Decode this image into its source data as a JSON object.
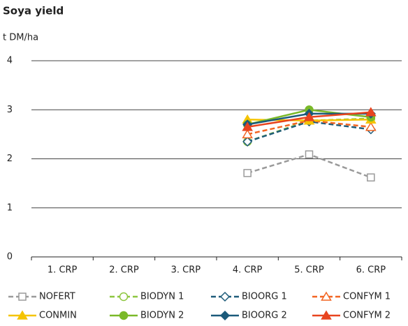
{
  "chart_data": {
    "type": "line",
    "title": "Soya yield",
    "y_label": "t DM/ha",
    "categories": [
      "1. CRP",
      "2. CRP",
      "3. CRP",
      "4. CRP",
      "5. CRP",
      "6. CRP"
    ],
    "ylim": [
      0,
      4
    ],
    "yticks": [
      0,
      1,
      2,
      3,
      4
    ],
    "grid": true,
    "series": [
      {
        "name": "NOFERT",
        "color": "#9a9a9a",
        "dashed": true,
        "marker": "square",
        "filled": false,
        "values": [
          null,
          null,
          null,
          1.71,
          2.09,
          1.62
        ]
      },
      {
        "name": "BIODYN 1",
        "color": "#8dc63f",
        "dashed": true,
        "marker": "circle",
        "filled": false,
        "values": [
          null,
          null,
          null,
          2.35,
          2.78,
          2.82
        ]
      },
      {
        "name": "BIOORG 1",
        "color": "#1f5c7a",
        "dashed": true,
        "marker": "diamond",
        "filled": false,
        "values": [
          null,
          null,
          null,
          2.35,
          2.76,
          2.6
        ]
      },
      {
        "name": "CONFYM 1",
        "color": "#f26522",
        "dashed": true,
        "marker": "triangle",
        "filled": false,
        "values": [
          null,
          null,
          null,
          2.5,
          2.78,
          2.65
        ]
      },
      {
        "name": "CONMIN",
        "color": "#f5c400",
        "dashed": false,
        "marker": "triangle",
        "filled": true,
        "values": [
          null,
          null,
          null,
          2.8,
          2.78,
          2.8
        ]
      },
      {
        "name": "BIODYN 2",
        "color": "#7ab929",
        "dashed": false,
        "marker": "circle",
        "filled": true,
        "values": [
          null,
          null,
          null,
          2.7,
          3.0,
          2.85
        ]
      },
      {
        "name": "BIOORG 2",
        "color": "#1b5a7a",
        "dashed": false,
        "marker": "diamond",
        "filled": true,
        "values": [
          null,
          null,
          null,
          2.7,
          2.92,
          2.92
        ]
      },
      {
        "name": "CONFYM 2",
        "color": "#e8441f",
        "dashed": false,
        "marker": "triangle",
        "filled": true,
        "values": [
          null,
          null,
          null,
          2.65,
          2.85,
          2.95
        ]
      }
    ]
  }
}
